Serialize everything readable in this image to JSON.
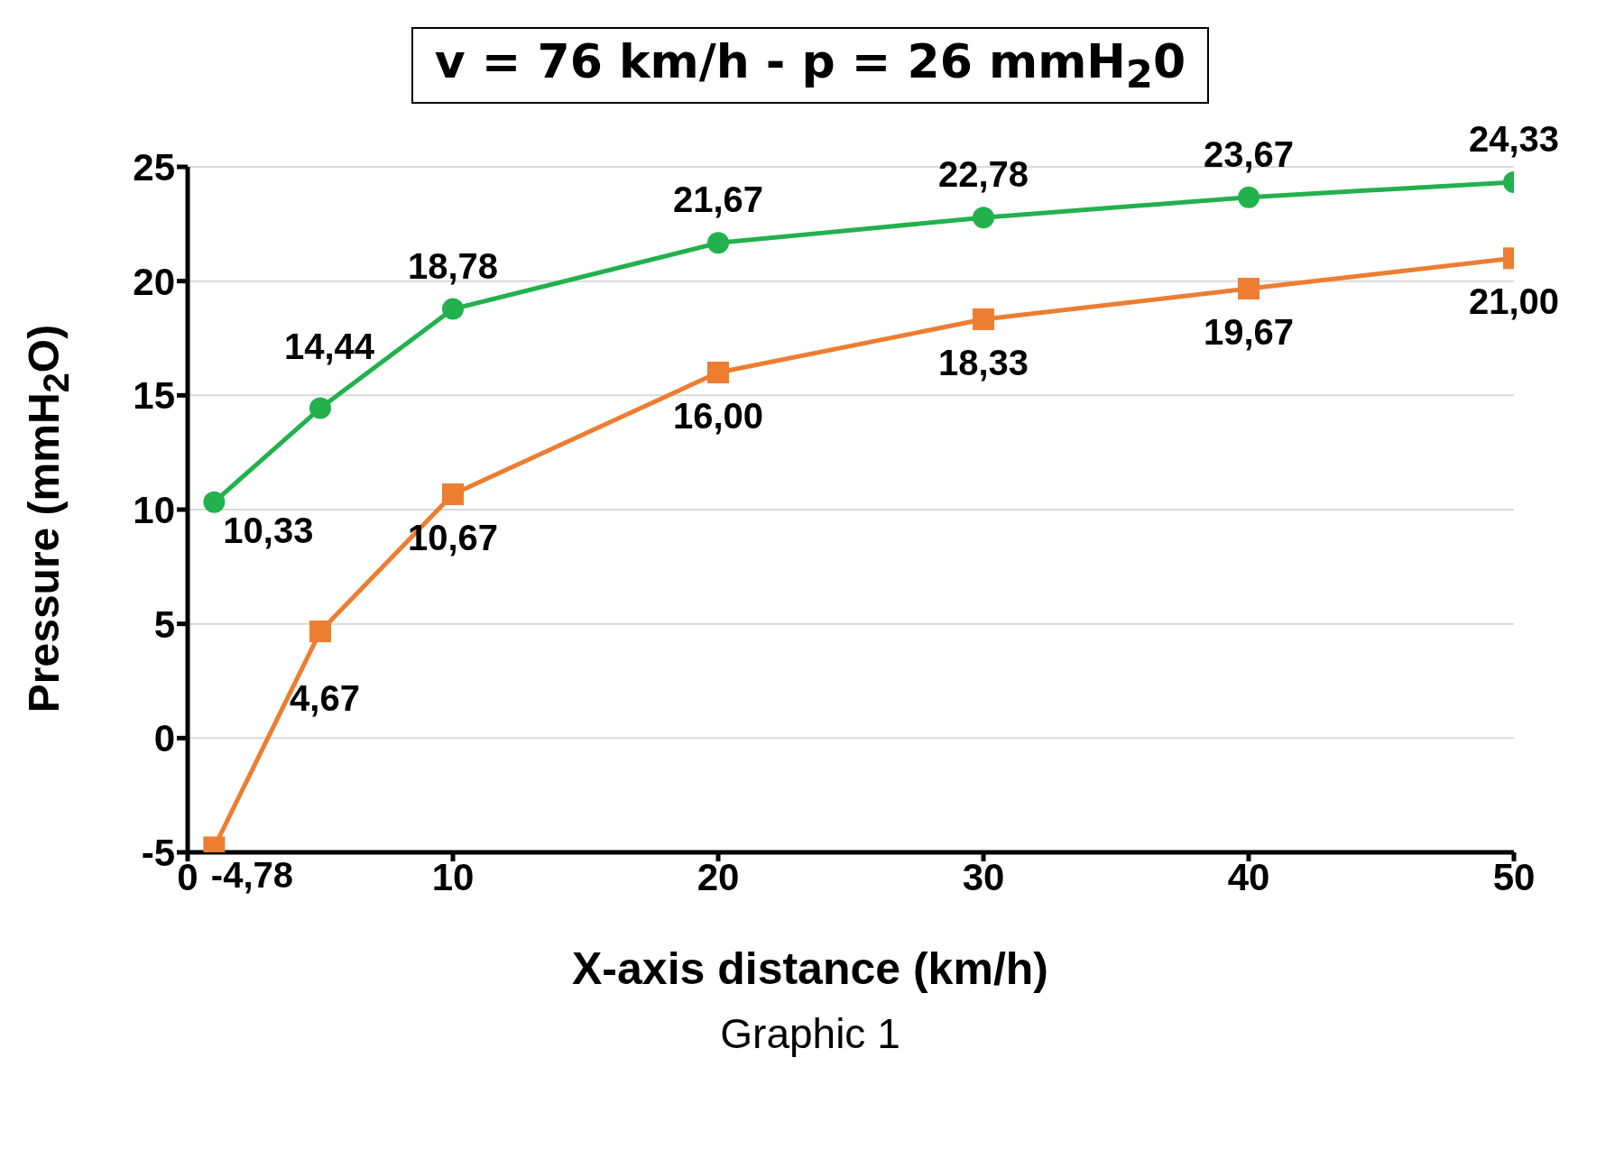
{
  "chart_data": {
    "type": "line",
    "title": "v = 76 km/h -  p = 26 mmH$_{2}$0",
    "xlabel": "X-axis distance (km/h)",
    "ylabel": "Pressure (mmH$_{2}$O)",
    "x": [
      1,
      5,
      10,
      20,
      30,
      40,
      50
    ],
    "series": [
      {
        "color": "#22b14c",
        "marker": "circle",
        "values": [
          10.33,
          14.44,
          18.78,
          21.67,
          22.78,
          23.67,
          24.33
        ],
        "value_labels": [
          "10,33",
          "14,44",
          "18,78",
          "21,67",
          "22,78",
          "23,67",
          "24,33"
        ]
      },
      {
        "color": "#ed7d31",
        "marker": "square",
        "values": [
          -4.78,
          4.67,
          10.67,
          16.0,
          18.33,
          19.67,
          21.0
        ],
        "value_labels": [
          "-4,78",
          "4,67",
          "10,67",
          "16,00",
          "18,33",
          "19,67",
          "21,00"
        ]
      }
    ],
    "xlim": [
      0,
      50
    ],
    "xticks": [
      0,
      10,
      20,
      30,
      40,
      50
    ],
    "ylim": [
      -5,
      25
    ],
    "yticks": [
      -5,
      0,
      5,
      10,
      15,
      20,
      25
    ],
    "grid": "y",
    "legend": false,
    "line_style": "solid",
    "annotations": [
      "Graphic 1"
    ]
  }
}
